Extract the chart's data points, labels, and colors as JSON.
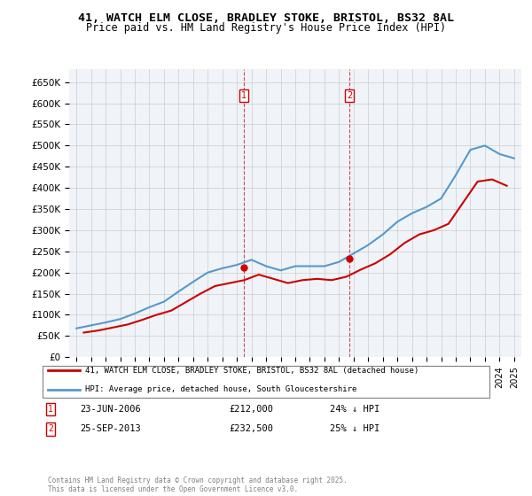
{
  "title": "41, WATCH ELM CLOSE, BRADLEY STOKE, BRISTOL, BS32 8AL",
  "subtitle": "Price paid vs. HM Land Registry's House Price Index (HPI)",
  "ylabel": "",
  "ylim": [
    0,
    680000
  ],
  "yticks": [
    0,
    50000,
    100000,
    150000,
    200000,
    250000,
    300000,
    350000,
    400000,
    450000,
    500000,
    550000,
    600000,
    650000
  ],
  "legend_line1": "41, WATCH ELM CLOSE, BRADLEY STOKE, BRISTOL, BS32 8AL (detached house)",
  "legend_line2": "HPI: Average price, detached house, South Gloucestershire",
  "marker1_date": "23-JUN-2006",
  "marker1_price": "£212,000",
  "marker1_hpi": "24% ↓ HPI",
  "marker2_date": "25-SEP-2013",
  "marker2_price": "£232,500",
  "marker2_hpi": "25% ↓ HPI",
  "footer": "Contains HM Land Registry data © Crown copyright and database right 2025.\nThis data is licensed under the Open Government Licence v3.0.",
  "red_color": "#cc0000",
  "blue_color": "#5599cc",
  "marker1_x": 2006.48,
  "marker2_x": 2013.73,
  "hpi_x": [
    1995,
    1996,
    1997,
    1998,
    1999,
    2000,
    2001,
    2002,
    2003,
    2004,
    2005,
    2006,
    2007,
    2008,
    2009,
    2010,
    2011,
    2012,
    2013,
    2014,
    2015,
    2016,
    2017,
    2018,
    2019,
    2020,
    2021,
    2022,
    2023,
    2024,
    2025
  ],
  "hpi_y": [
    68000,
    75000,
    82000,
    90000,
    103000,
    118000,
    131000,
    155000,
    178000,
    200000,
    210000,
    218000,
    230000,
    215000,
    205000,
    215000,
    215000,
    215000,
    225000,
    245000,
    265000,
    290000,
    320000,
    340000,
    355000,
    375000,
    430000,
    490000,
    500000,
    480000,
    470000
  ],
  "price_x": [
    1995.5,
    1996.5,
    1997.5,
    1998.5,
    1999.5,
    2000.5,
    2001.5,
    2002.5,
    2003.5,
    2004.5,
    2005.5,
    2006.5,
    2007.5,
    2008.5,
    2009.5,
    2010.5,
    2011.5,
    2012.5,
    2013.5,
    2014.5,
    2015.5,
    2016.5,
    2017.5,
    2018.5,
    2019.5,
    2020.5,
    2021.5,
    2022.5,
    2023.5,
    2024.5
  ],
  "price_y": [
    58000,
    63000,
    70000,
    77000,
    88000,
    100000,
    110000,
    130000,
    150000,
    168000,
    175000,
    182000,
    195000,
    185000,
    175000,
    182000,
    185000,
    182000,
    190000,
    207000,
    222000,
    243000,
    270000,
    290000,
    300000,
    315000,
    365000,
    415000,
    420000,
    405000
  ]
}
